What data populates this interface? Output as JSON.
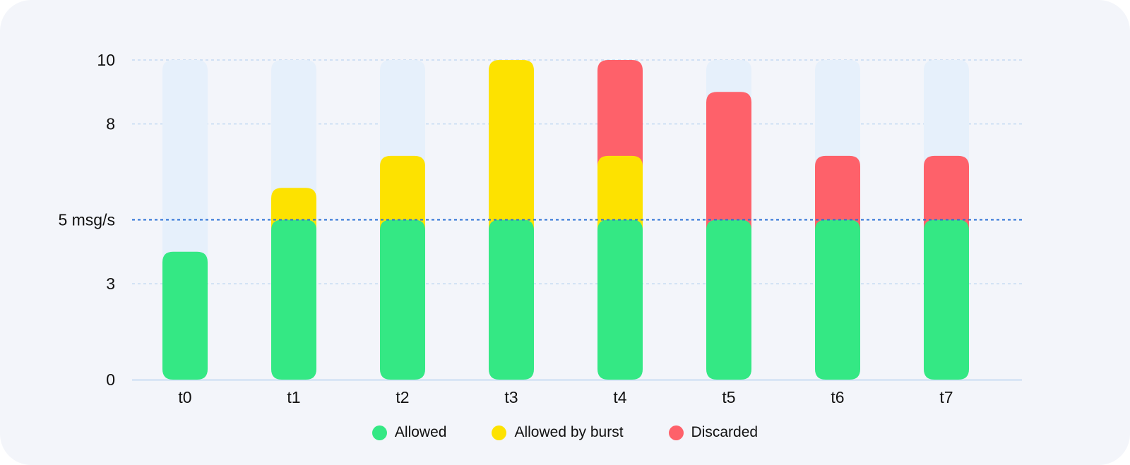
{
  "chart_data": {
    "type": "bar",
    "stacked": true,
    "categories": [
      "t0",
      "t1",
      "t2",
      "t3",
      "t4",
      "t5",
      "t6",
      "t7"
    ],
    "series": [
      {
        "name": "Allowed",
        "color": "#34e884",
        "values": [
          4.0,
          5,
          5,
          5,
          5,
          5,
          5,
          5
        ]
      },
      {
        "name": "Allowed by burst",
        "color": "#fde200",
        "values": [
          0,
          1.0,
          2.0,
          5,
          2.0,
          0,
          0,
          0
        ]
      },
      {
        "name": "Discarded",
        "color": "#fe616a",
        "values": [
          0,
          0,
          0,
          0,
          3.0,
          4.0,
          2.0,
          2.0
        ]
      }
    ],
    "capacity": 10,
    "capacity_color": "#e6f0fb",
    "limit": {
      "value": 5,
      "label": "5 msg/s",
      "color": "#2a6fd6"
    },
    "yticks": [
      {
        "value": 0,
        "label": "0"
      },
      {
        "value": 3,
        "label": "3"
      },
      {
        "value": 5,
        "label": "5 msg/s"
      },
      {
        "value": 8,
        "label": "8"
      },
      {
        "value": 10,
        "label": "10"
      }
    ],
    "ylim": [
      0,
      10
    ],
    "grid": true,
    "legend_position": "bottom-center"
  }
}
